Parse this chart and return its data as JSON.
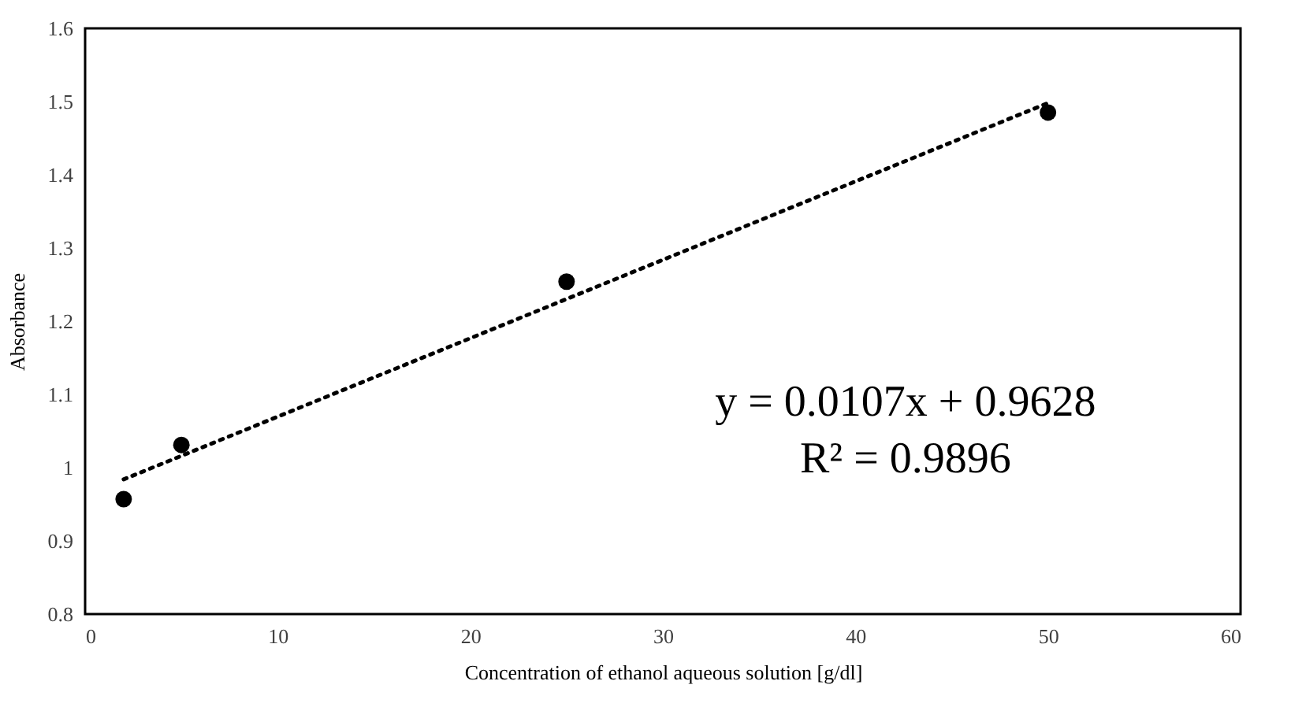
{
  "chart_data": {
    "type": "scatter",
    "xlabel": "Concentration of ethanol aqueous solution [g/dl]",
    "ylabel": "Absorbance",
    "x": [
      2,
      5,
      25,
      50
    ],
    "series": [
      {
        "color": "#000000",
        "marker": "circle",
        "values": [
          0.957,
          1.031,
          1.254,
          1.485
        ]
      },
      {
        "type": "line",
        "color": "#000000",
        "line_style": "dotted",
        "x": [
          2,
          50
        ],
        "values": [
          0.984,
          1.498
        ]
      }
    ],
    "annotations": [
      "y = 0.0107x + 0.9628",
      "R² = 0.9896"
    ],
    "xlim": [
      0,
      60
    ],
    "xticks": [
      0,
      10,
      20,
      30,
      40,
      50,
      60
    ],
    "ylim": [
      0.8,
      1.6
    ],
    "yticks": [
      0.8,
      0.9,
      {
        "value": 1,
        "label": "1"
      },
      1.1,
      1.2,
      1.3,
      1.4,
      1.5,
      1.6
    ],
    "grid": false
  }
}
